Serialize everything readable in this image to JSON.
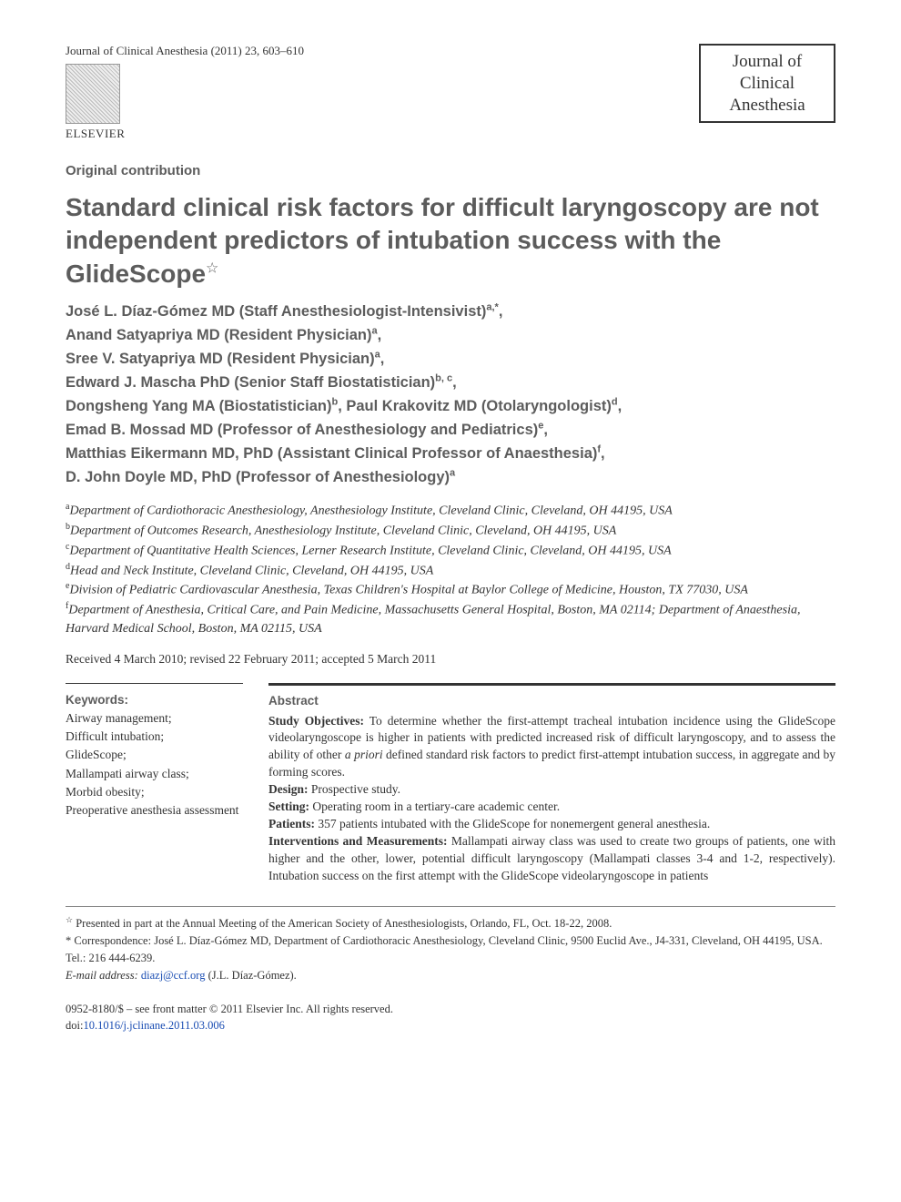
{
  "header": {
    "journal_ref": "Journal of Clinical Anesthesia (2011) 23, 603–610",
    "journal_box_line1": "Journal of",
    "journal_box_line2": "Clinical",
    "journal_box_line3": "Anesthesia",
    "publisher": "ELSEVIER"
  },
  "article_type": "Original contribution",
  "title": "Standard clinical risk factors for difficult laryngoscopy are not independent predictors of intubation success with the GlideScope",
  "title_marker": "☆",
  "authors": [
    {
      "name": "José L. Díaz-Gómez MD (Staff Anesthesiologist-Intensivist)",
      "aff": "a,*",
      "trail": ","
    },
    {
      "name": "Anand Satyapriya MD (Resident Physician)",
      "aff": "a",
      "trail": ","
    },
    {
      "name": "Sree V. Satyapriya MD (Resident Physician)",
      "aff": "a",
      "trail": ","
    },
    {
      "name": "Edward J. Mascha PhD (Senior Staff Biostatistician)",
      "aff": "b, c",
      "trail": ","
    },
    {
      "name": "Dongsheng Yang MA (Biostatistician)",
      "aff": "b",
      "trail": ", "
    },
    {
      "name": "Paul Krakovitz MD (Otolaryngologist)",
      "aff": "d",
      "trail": ","
    },
    {
      "name": "Emad B. Mossad MD (Professor of Anesthesiology and Pediatrics)",
      "aff": "e",
      "trail": ","
    },
    {
      "name": "Matthias Eikermann MD, PhD (Assistant Clinical Professor of Anaesthesia)",
      "aff": "f",
      "trail": ","
    },
    {
      "name": "D. John Doyle MD, PhD (Professor of Anesthesiology)",
      "aff": "a",
      "trail": ""
    }
  ],
  "affiliations": [
    {
      "key": "a",
      "text": "Department of Cardiothoracic Anesthesiology, Anesthesiology Institute, Cleveland Clinic, Cleveland, OH 44195, USA"
    },
    {
      "key": "b",
      "text": "Department of Outcomes Research, Anesthesiology Institute, Cleveland Clinic, Cleveland, OH 44195, USA"
    },
    {
      "key": "c",
      "text": "Department of Quantitative Health Sciences, Lerner Research Institute, Cleveland Clinic, Cleveland, OH 44195, USA"
    },
    {
      "key": "d",
      "text": "Head and Neck Institute, Cleveland Clinic, Cleveland, OH 44195, USA"
    },
    {
      "key": "e",
      "text": "Division of Pediatric Cardiovascular Anesthesia, Texas Children's Hospital at Baylor College of Medicine, Houston, TX 77030, USA"
    },
    {
      "key": "f",
      "text": "Department of Anesthesia, Critical Care, and Pain Medicine, Massachusetts General Hospital, Boston, MA 02114; Department of Anaesthesia, Harvard Medical School, Boston, MA 02115, USA"
    }
  ],
  "dates": "Received 4 March 2010; revised 22 February 2011; accepted 5 March 2011",
  "keywords": {
    "heading": "Keywords:",
    "items": [
      "Airway management;",
      "Difficult intubation;",
      "GlideScope;",
      "Mallampati airway class;",
      "Morbid obesity;",
      "Preoperative anesthesia assessment"
    ]
  },
  "abstract": {
    "heading": "Abstract",
    "sections": [
      {
        "label": "Study Objectives:",
        "text": " To determine whether the first-attempt tracheal intubation incidence using the GlideScope videolaryngoscope is higher in patients with predicted increased risk of difficult laryngoscopy, and to assess the ability of other a priori defined standard risk factors to predict first-attempt intubation success, in aggregate and by forming scores."
      },
      {
        "label": "Design:",
        "text": " Prospective study."
      },
      {
        "label": "Setting:",
        "text": " Operating room in a tertiary-care academic center."
      },
      {
        "label": "Patients:",
        "text": " 357 patients intubated with the GlideScope for nonemergent general anesthesia."
      },
      {
        "label": "Interventions and Measurements:",
        "text": " Mallampati airway class was used to create two groups of patients, one with higher and the other, lower, potential difficult laryngoscopy (Mallampati classes 3-4 and 1-2, respectively). Intubation success on the first attempt with the GlideScope videolaryngoscope in patients"
      }
    ]
  },
  "footnotes": {
    "star": "Presented in part at the Annual Meeting of the American Society of Anesthesiologists, Orlando, FL, Oct. 18-22, 2008.",
    "corr_label": "* Correspondence: ",
    "corr": "José L. Díaz-Gómez MD, Department of Cardiothoracic Anesthesiology, Cleveland Clinic, 9500 Euclid Ave., J4-331, Cleveland, OH 44195, USA. Tel.: 216 444-6239.",
    "email_label": "E-mail address: ",
    "email": "diazj@ccf.org",
    "email_suffix": " (J.L. Díaz-Gómez)."
  },
  "copyright": {
    "line1": "0952-8180/$ – see front matter © 2011 Elsevier Inc. All rights reserved.",
    "doi_label": "doi:",
    "doi": "10.1016/j.jclinane.2011.03.006"
  }
}
